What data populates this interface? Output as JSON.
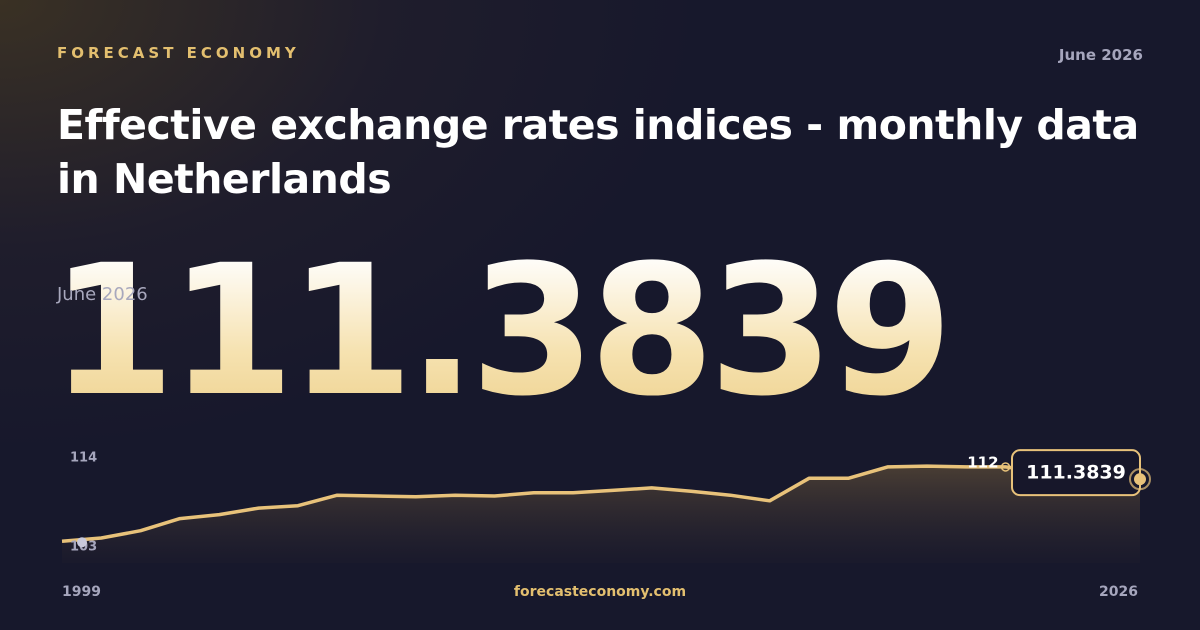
{
  "brand": "FORECAST ECONOMY",
  "date": "June 2026",
  "title": "Effective exchange rates indices - monthly data in Netherlands",
  "headline": {
    "value": "111.3839",
    "date": "June 2026"
  },
  "chart_data": {
    "type": "area",
    "x": [
      1999,
      2000,
      2001,
      2002,
      2003,
      2004,
      2005,
      2006,
      2007,
      2008,
      2009,
      2010,
      2011,
      2012,
      2013,
      2014,
      2015,
      2016,
      2017,
      2018,
      2019,
      2020,
      2021,
      2022,
      2023,
      2024,
      2025,
      2026.42
    ],
    "values": [
      103.7,
      104.1,
      105.0,
      106.5,
      107.0,
      107.8,
      108.1,
      109.4,
      109.3,
      109.2,
      109.4,
      109.3,
      109.7,
      109.7,
      110.0,
      110.3,
      109.9,
      109.4,
      108.7,
      111.5,
      111.5,
      112.9,
      113.0,
      112.9,
      112.9,
      112.3,
      112.0,
      111.3839
    ],
    "color": "#e8c27a",
    "xlim": [
      1999,
      2026.42
    ],
    "ylim": [
      101,
      115
    ],
    "yticks": [
      103,
      114
    ],
    "xticks": [
      1999,
      2026
    ],
    "annotation": "112"
  },
  "footer": "forecasteconomy.com"
}
